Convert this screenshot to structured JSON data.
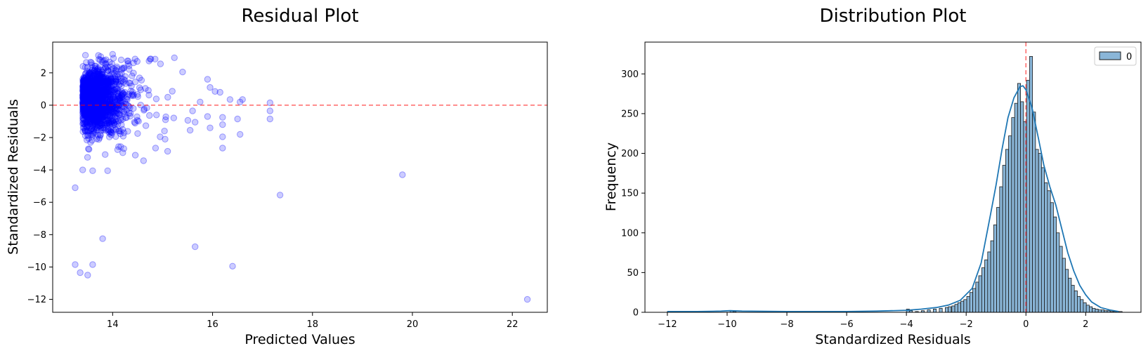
{
  "chart_data": [
    {
      "type": "scatter",
      "title": "Residual Plot",
      "xlabel": "Predicted Values",
      "ylabel": "Standardized Residuals",
      "xlim": [
        12.8,
        22.7
      ],
      "ylim": [
        -12.8,
        3.9
      ],
      "xticks": [
        14,
        16,
        18,
        20,
        22
      ],
      "yticks": [
        -12,
        -10,
        -8,
        -6,
        -4,
        -2,
        0,
        2
      ],
      "point_color": "#0000ff",
      "point_alpha": 0.2,
      "reference_line": {
        "y": 0,
        "color": "#ff0000",
        "style": "dashed"
      },
      "points_outliers": [
        {
          "x": 13.25,
          "y": -5.1
        },
        {
          "x": 13.25,
          "y": -9.85
        },
        {
          "x": 13.35,
          "y": -10.35
        },
        {
          "x": 13.5,
          "y": -10.5
        },
        {
          "x": 13.6,
          "y": -9.85
        },
        {
          "x": 13.8,
          "y": -8.25
        },
        {
          "x": 15.65,
          "y": -8.75
        },
        {
          "x": 16.4,
          "y": -9.95
        },
        {
          "x": 17.35,
          "y": -5.55
        },
        {
          "x": 19.8,
          "y": -4.3
        },
        {
          "x": 22.3,
          "y": -12.0
        },
        {
          "x": 13.4,
          "y": -4.0
        },
        {
          "x": 13.6,
          "y": -4.05
        },
        {
          "x": 13.9,
          "y": -4.05
        },
        {
          "x": 14.0,
          "y": 3.15
        },
        {
          "x": 13.75,
          "y": 2.8
        },
        {
          "x": 14.85,
          "y": 2.85
        },
        {
          "x": 14.75,
          "y": 2.85
        },
        {
          "x": 15.4,
          "y": 2.05
        },
        {
          "x": 15.9,
          "y": 1.6
        },
        {
          "x": 15.95,
          "y": 1.1
        },
        {
          "x": 15.9,
          "y": -0.7
        },
        {
          "x": 15.95,
          "y": -1.4
        },
        {
          "x": 16.05,
          "y": 0.85
        },
        {
          "x": 16.15,
          "y": 0.8
        },
        {
          "x": 16.2,
          "y": -0.75
        },
        {
          "x": 16.2,
          "y": -1.2
        },
        {
          "x": 16.2,
          "y": -1.95
        },
        {
          "x": 16.2,
          "y": -2.65
        },
        {
          "x": 16.35,
          "y": 0.35
        },
        {
          "x": 16.55,
          "y": 0.2
        },
        {
          "x": 16.6,
          "y": 0.35
        },
        {
          "x": 16.5,
          "y": -0.85
        },
        {
          "x": 16.55,
          "y": -1.8
        },
        {
          "x": 17.15,
          "y": 0.15
        },
        {
          "x": 17.15,
          "y": -0.35
        },
        {
          "x": 17.15,
          "y": -0.85
        },
        {
          "x": 15.6,
          "y": -0.35
        },
        {
          "x": 15.65,
          "y": -1.05
        },
        {
          "x": 15.55,
          "y": -1.55
        },
        {
          "x": 15.75,
          "y": 0.2
        },
        {
          "x": 15.1,
          "y": -2.85
        },
        {
          "x": 14.95,
          "y": -1.95
        },
        {
          "x": 15.05,
          "y": -2.1
        },
        {
          "x": 14.5,
          "y": -1.75
        },
        {
          "x": 14.2,
          "y": -1.5
        },
        {
          "x": 14.1,
          "y": -2.75
        },
        {
          "x": 13.85,
          "y": -3.05
        }
      ],
      "dense_cluster": {
        "x_center": 13.85,
        "x_spread": 0.35,
        "y_center": 0.3,
        "y_spread": 1.3,
        "n": 1600
      }
    },
    {
      "type": "histogram",
      "title": "Distribution Plot",
      "xlabel": "Standardized Residuals",
      "ylabel": "Frequency",
      "xlim": [
        -12.75,
        3.85
      ],
      "ylim": [
        0,
        340
      ],
      "xticks": [
        -12,
        -10,
        -8,
        -6,
        -4,
        -2,
        0,
        2
      ],
      "yticks": [
        0,
        50,
        100,
        150,
        200,
        250,
        300
      ],
      "legend": {
        "position": "top-right",
        "entries": [
          "0"
        ]
      },
      "bar_fill": "#8ab6d8",
      "bar_edge": "#1a1a1a",
      "kde_color": "#1f77b4",
      "reference_line": {
        "x": 0,
        "color": "#ff0000",
        "style": "dashed"
      },
      "bin_start": -2.48,
      "bin_width": 0.1,
      "counts": [
        8,
        10,
        12,
        14,
        16,
        20,
        25,
        30,
        38,
        46,
        56,
        66,
        76,
        90,
        110,
        132,
        158,
        185,
        205,
        222,
        245,
        263,
        288,
        265,
        240,
        292,
        322,
        252,
        205,
        200,
        182,
        163,
        153,
        138,
        120,
        100,
        83,
        68,
        54,
        43,
        34,
        27,
        20,
        16,
        12,
        9,
        7,
        5,
        4,
        3,
        3,
        2,
        2,
        1,
        1,
        1,
        1
      ],
      "sparse_bars": [
        {
          "x": -12.0,
          "count": 1
        },
        {
          "x": -9.9,
          "count": 2
        },
        {
          "x": -9.8,
          "count": 1
        },
        {
          "x": -4.0,
          "count": 4
        },
        {
          "x": -3.9,
          "count": 2
        },
        {
          "x": -3.7,
          "count": 1
        },
        {
          "x": -3.5,
          "count": 2
        },
        {
          "x": -3.3,
          "count": 3
        },
        {
          "x": -3.1,
          "count": 4
        },
        {
          "x": -2.9,
          "count": 5
        },
        {
          "x": -2.7,
          "count": 6
        },
        {
          "x": -2.6,
          "count": 7
        }
      ],
      "kde": [
        {
          "x": -12.0,
          "y": 1
        },
        {
          "x": -11.0,
          "y": 1
        },
        {
          "x": -10.2,
          "y": 1.5
        },
        {
          "x": -9.9,
          "y": 2
        },
        {
          "x": -9.5,
          "y": 1.5
        },
        {
          "x": -8.0,
          "y": 1
        },
        {
          "x": -6.0,
          "y": 1
        },
        {
          "x": -5.0,
          "y": 1.5
        },
        {
          "x": -4.0,
          "y": 2.5
        },
        {
          "x": -3.5,
          "y": 4
        },
        {
          "x": -3.0,
          "y": 6
        },
        {
          "x": -2.6,
          "y": 9
        },
        {
          "x": -2.2,
          "y": 15
        },
        {
          "x": -1.8,
          "y": 30
        },
        {
          "x": -1.5,
          "y": 62
        },
        {
          "x": -1.2,
          "y": 120
        },
        {
          "x": -1.0,
          "y": 160
        },
        {
          "x": -0.8,
          "y": 205
        },
        {
          "x": -0.6,
          "y": 245
        },
        {
          "x": -0.4,
          "y": 270
        },
        {
          "x": -0.2,
          "y": 284
        },
        {
          "x": -0.1,
          "y": 285
        },
        {
          "x": 0.0,
          "y": 280
        },
        {
          "x": 0.2,
          "y": 258
        },
        {
          "x": 0.4,
          "y": 222
        },
        {
          "x": 0.6,
          "y": 185
        },
        {
          "x": 0.8,
          "y": 158
        },
        {
          "x": 1.0,
          "y": 135
        },
        {
          "x": 1.2,
          "y": 105
        },
        {
          "x": 1.4,
          "y": 75
        },
        {
          "x": 1.6,
          "y": 52
        },
        {
          "x": 1.8,
          "y": 34
        },
        {
          "x": 2.0,
          "y": 22
        },
        {
          "x": 2.2,
          "y": 13
        },
        {
          "x": 2.5,
          "y": 6
        },
        {
          "x": 2.8,
          "y": 3
        },
        {
          "x": 3.1,
          "y": 1
        }
      ]
    }
  ]
}
